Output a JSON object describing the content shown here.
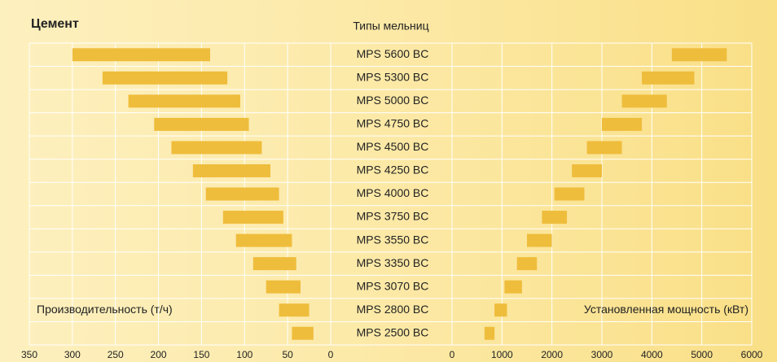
{
  "title": "Цемент",
  "mill_types": {
    "title": "Типы мельниц",
    "categories": [
      "MPS  5600 BC",
      "MPS  5300 BC",
      "MPS  5000 BC",
      "MPS  4750 BC",
      "MPS  4500 BC",
      "MPS  4250 BC",
      "MPS  4000 BC",
      "MPS  3750 BC",
      "MPS  3550 BC",
      "MPS  3350 BC",
      "MPS  3070 BC",
      "MPS  2800 BC",
      "MPS  2500 BC"
    ]
  },
  "chart_data": [
    {
      "type": "floating-bar",
      "xlabel": "Производительность (т/ч)",
      "color": "#efbd3c",
      "values": [
        [
          140,
          300
        ],
        [
          120,
          265
        ],
        [
          105,
          235
        ],
        [
          95,
          205
        ],
        [
          80,
          185
        ],
        [
          70,
          160
        ],
        [
          60,
          145
        ],
        [
          55,
          125
        ],
        [
          45,
          110
        ],
        [
          40,
          90
        ],
        [
          35,
          75
        ],
        [
          25,
          60
        ],
        [
          20,
          45
        ]
      ],
      "xlim": [
        350,
        0
      ],
      "xticks": [
        350,
        300,
        250,
        200,
        150,
        100,
        50,
        0
      ],
      "grid": true
    },
    {
      "type": "floating-bar",
      "xlabel": "Установленная мощность (кВт)",
      "color": "#efbd3c",
      "values": [
        [
          4400,
          5500
        ],
        [
          3800,
          4850
        ],
        [
          3400,
          4300
        ],
        [
          3000,
          3800
        ],
        [
          2700,
          3400
        ],
        [
          2400,
          3000
        ],
        [
          2050,
          2650
        ],
        [
          1800,
          2300
        ],
        [
          1500,
          2000
        ],
        [
          1300,
          1700
        ],
        [
          1050,
          1400
        ],
        [
          850,
          1100
        ],
        [
          650,
          850
        ]
      ],
      "xlim": [
        0,
        6000
      ],
      "xticks": [
        0,
        1000,
        2000,
        3000,
        4000,
        5000,
        6000
      ],
      "grid": true
    }
  ]
}
